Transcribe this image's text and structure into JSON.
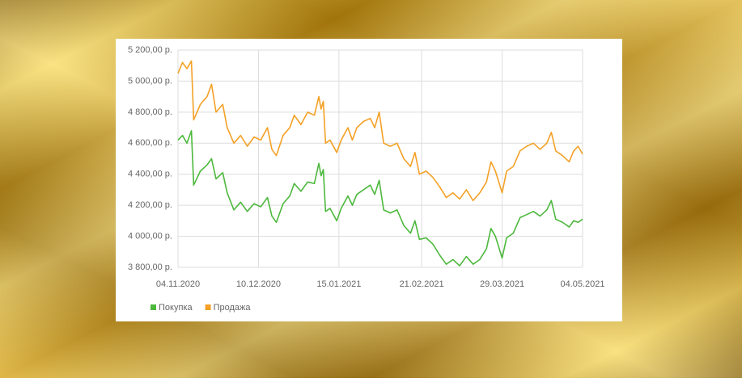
{
  "chart_data": {
    "type": "line",
    "x": [
      "2020-11-04",
      "2020-11-06",
      "2020-11-08",
      "2020-11-10",
      "2020-11-11",
      "2020-11-14",
      "2020-11-17",
      "2020-11-19",
      "2020-11-21",
      "2020-11-24",
      "2020-11-26",
      "2020-11-29",
      "2020-12-02",
      "2020-12-05",
      "2020-12-08",
      "2020-12-11",
      "2020-12-14",
      "2020-12-16",
      "2020-12-18",
      "2020-12-21",
      "2020-12-24",
      "2020-12-26",
      "2020-12-29",
      "2021-01-01",
      "2021-01-04",
      "2021-01-06",
      "2021-01-07",
      "2021-01-08",
      "2021-01-09",
      "2021-01-11",
      "2021-01-14",
      "2021-01-16",
      "2021-01-19",
      "2021-01-21",
      "2021-01-23",
      "2021-01-26",
      "2021-01-29",
      "2021-01-31",
      "2021-02-02",
      "2021-02-04",
      "2021-02-07",
      "2021-02-10",
      "2021-02-13",
      "2021-02-16",
      "2021-02-18",
      "2021-02-20",
      "2021-02-23",
      "2021-02-26",
      "2021-03-01",
      "2021-03-04",
      "2021-03-07",
      "2021-03-10",
      "2021-03-13",
      "2021-03-16",
      "2021-03-19",
      "2021-03-22",
      "2021-03-24",
      "2021-03-26",
      "2021-03-29",
      "2021-03-31",
      "2021-04-03",
      "2021-04-06",
      "2021-04-09",
      "2021-04-12",
      "2021-04-15",
      "2021-04-18",
      "2021-04-20",
      "2021-04-22",
      "2021-04-25",
      "2021-04-28",
      "2021-04-30",
      "2021-05-02",
      "2021-05-04"
    ],
    "series": [
      {
        "name": "Покупка",
        "color": "#4cb83c",
        "values": [
          4620,
          4650,
          4600,
          4680,
          4330,
          4420,
          4460,
          4500,
          4370,
          4410,
          4280,
          4170,
          4220,
          4160,
          4210,
          4190,
          4250,
          4130,
          4090,
          4210,
          4260,
          4340,
          4290,
          4350,
          4340,
          4470,
          4390,
          4430,
          4160,
          4180,
          4100,
          4180,
          4260,
          4200,
          4270,
          4300,
          4330,
          4270,
          4360,
          4170,
          4150,
          4170,
          4070,
          4020,
          4100,
          3980,
          3990,
          3950,
          3880,
          3820,
          3850,
          3810,
          3870,
          3820,
          3850,
          3920,
          4050,
          4000,
          3860,
          3990,
          4020,
          4120,
          4140,
          4160,
          4130,
          4170,
          4230,
          4110,
          4090,
          4060,
          4100,
          4090,
          4110
        ]
      },
      {
        "name": "Продажа",
        "color": "#f4a126",
        "values": [
          5050,
          5120,
          5080,
          5130,
          4750,
          4850,
          4900,
          4980,
          4800,
          4850,
          4700,
          4600,
          4650,
          4580,
          4640,
          4620,
          4700,
          4560,
          4520,
          4650,
          4700,
          4780,
          4720,
          4800,
          4780,
          4900,
          4820,
          4870,
          4600,
          4620,
          4540,
          4620,
          4700,
          4620,
          4700,
          4740,
          4760,
          4700,
          4800,
          4600,
          4580,
          4600,
          4500,
          4450,
          4540,
          4400,
          4420,
          4380,
          4320,
          4250,
          4280,
          4240,
          4300,
          4230,
          4280,
          4350,
          4480,
          4420,
          4280,
          4420,
          4450,
          4550,
          4580,
          4600,
          4560,
          4600,
          4670,
          4550,
          4520,
          4480,
          4550,
          4580,
          4530
        ]
      }
    ],
    "xlim": [
      "2020-11-04",
      "2021-05-04"
    ],
    "xticks": [
      {
        "value": "2020-11-04",
        "label": "04.11.2020"
      },
      {
        "value": "2020-12-10",
        "label": "10.12.2020"
      },
      {
        "value": "2021-01-15",
        "label": "15.01.2021"
      },
      {
        "value": "2021-02-21",
        "label": "21.02.2021"
      },
      {
        "value": "2021-03-29",
        "label": "29.03.2021"
      },
      {
        "value": "2021-05-04",
        "label": "04.05.2021"
      }
    ],
    "ylim": [
      3800,
      5200
    ],
    "yticks": [
      {
        "value": 3800,
        "label": "3 800,00 р."
      },
      {
        "value": 4000,
        "label": "4 000,00 р."
      },
      {
        "value": 4200,
        "label": "4 200,00 р."
      },
      {
        "value": 4400,
        "label": "4 400,00 р."
      },
      {
        "value": 4600,
        "label": "4 600,00 р."
      },
      {
        "value": 4800,
        "label": "4 800,00 р."
      },
      {
        "value": 5000,
        "label": "5 000,00 р."
      },
      {
        "value": 5200,
        "label": "5 200,00 р."
      }
    ],
    "grid": true,
    "legend": "bottom-left"
  }
}
